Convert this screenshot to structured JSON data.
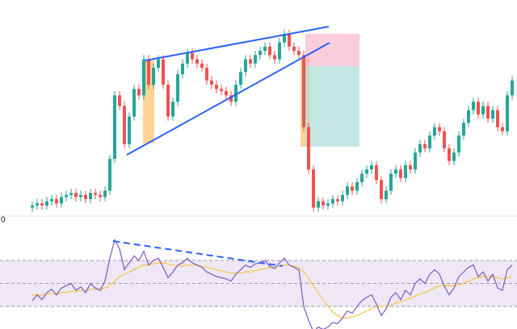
{
  "chart_data": {
    "type": "candlestick",
    "label": "0",
    "ylim": [
      -2,
      100
    ],
    "up_color": "#26a69a",
    "down_color": "#ef5350",
    "open": [
      2,
      3,
      4,
      3,
      5,
      6,
      4,
      7,
      8,
      9,
      7,
      8,
      6,
      9,
      8,
      7,
      10,
      25,
      55,
      50,
      32,
      45,
      58,
      55,
      72,
      60,
      68,
      72,
      60,
      45,
      52,
      65,
      70,
      75,
      72,
      70,
      68,
      62,
      60,
      58,
      57,
      55,
      52,
      60,
      66,
      72,
      70,
      74,
      76,
      78,
      74,
      72,
      80,
      84,
      78,
      76,
      74,
      40,
      20,
      2,
      5,
      3,
      4,
      6,
      5,
      8,
      12,
      10,
      14,
      18,
      20,
      22,
      15,
      6,
      10,
      18,
      20,
      16,
      22,
      20,
      28,
      32,
      30,
      36,
      40,
      38,
      30,
      24,
      28,
      36,
      42,
      48,
      52,
      46,
      50,
      44,
      48,
      40,
      38,
      55
    ],
    "high": [
      5,
      6,
      6,
      7,
      8,
      8,
      9,
      10,
      11,
      11,
      10,
      10,
      11,
      11,
      10,
      12,
      27,
      57,
      57,
      52,
      47,
      60,
      60,
      74,
      74,
      70,
      74,
      74,
      62,
      54,
      67,
      72,
      77,
      77,
      74,
      72,
      70,
      64,
      62,
      60,
      59,
      57,
      62,
      68,
      74,
      74,
      76,
      78,
      80,
      80,
      76,
      82,
      86,
      86,
      80,
      78,
      76,
      42,
      22,
      7,
      7,
      6,
      8,
      8,
      10,
      14,
      14,
      16,
      20,
      22,
      24,
      24,
      17,
      12,
      20,
      22,
      22,
      24,
      24,
      30,
      34,
      34,
      38,
      42,
      42,
      40,
      32,
      30,
      38,
      44,
      50,
      54,
      54,
      52,
      52,
      50,
      50,
      42,
      57,
      64
    ],
    "low": [
      0,
      1,
      1,
      1,
      3,
      2,
      2,
      5,
      6,
      5,
      5,
      4,
      4,
      6,
      5,
      5,
      8,
      23,
      48,
      30,
      30,
      43,
      53,
      53,
      58,
      58,
      66,
      58,
      43,
      43,
      50,
      63,
      68,
      70,
      68,
      66,
      60,
      58,
      56,
      55,
      53,
      50,
      50,
      58,
      64,
      68,
      68,
      72,
      74,
      72,
      70,
      70,
      78,
      76,
      74,
      72,
      38,
      18,
      0,
      0,
      1,
      1,
      2,
      3,
      3,
      6,
      8,
      8,
      12,
      16,
      18,
      13,
      4,
      4,
      8,
      16,
      14,
      14,
      18,
      18,
      26,
      28,
      28,
      34,
      36,
      28,
      22,
      22,
      26,
      34,
      40,
      46,
      44,
      44,
      42,
      42,
      38,
      36,
      36,
      53
    ],
    "close": [
      3,
      4,
      3,
      5,
      6,
      4,
      7,
      8,
      9,
      7,
      8,
      6,
      9,
      8,
      7,
      10,
      25,
      55,
      50,
      32,
      45,
      58,
      55,
      72,
      60,
      68,
      72,
      60,
      45,
      52,
      65,
      70,
      75,
      72,
      70,
      68,
      62,
      60,
      58,
      57,
      55,
      52,
      60,
      66,
      72,
      70,
      74,
      76,
      78,
      74,
      72,
      80,
      84,
      78,
      76,
      74,
      40,
      20,
      2,
      5,
      3,
      4,
      6,
      5,
      8,
      12,
      10,
      14,
      18,
      20,
      22,
      15,
      6,
      10,
      18,
      20,
      16,
      22,
      20,
      28,
      32,
      30,
      36,
      40,
      38,
      30,
      24,
      28,
      36,
      42,
      48,
      52,
      46,
      50,
      44,
      48,
      40,
      38,
      55,
      62
    ],
    "rsi": {
      "type": "line",
      "ylim": [
        0,
        100
      ],
      "bands": [
        70,
        50,
        30
      ],
      "band_color": "#ede7f6",
      "series": [
        {
          "color": "#7e57c2",
          "values": [
            35,
            40,
            36,
            42,
            45,
            40,
            46,
            48,
            50,
            44,
            47,
            42,
            50,
            46,
            44,
            52,
            72,
            88,
            80,
            62,
            68,
            74,
            70,
            78,
            66,
            70,
            72,
            64,
            55,
            60,
            66,
            68,
            72,
            68,
            66,
            64,
            60,
            58,
            56,
            55,
            54,
            52,
            58,
            62,
            66,
            64,
            67,
            68,
            70,
            65,
            63,
            68,
            72,
            66,
            64,
            62,
            30,
            18,
            8,
            12,
            10,
            12,
            16,
            15,
            20,
            26,
            24,
            30,
            35,
            38,
            40,
            32,
            22,
            28,
            38,
            42,
            36,
            44,
            40,
            50,
            54,
            50,
            58,
            62,
            58,
            48,
            40,
            46,
            56,
            60,
            64,
            66,
            56,
            60,
            52,
            58,
            46,
            44,
            62,
            66
          ]
        },
        {
          "color": "#f5c542",
          "values": [
            40,
            40,
            40,
            41,
            41,
            41,
            42,
            42,
            43,
            43,
            44,
            44,
            45,
            45,
            45,
            46,
            48,
            52,
            56,
            58,
            60,
            62,
            64,
            66,
            66,
            67,
            68,
            68,
            67,
            66,
            65,
            65,
            66,
            66,
            66,
            65,
            64,
            63,
            62,
            61,
            60,
            59,
            59,
            59,
            60,
            60,
            61,
            62,
            63,
            64,
            64,
            65,
            66,
            66,
            65,
            64,
            60,
            55,
            48,
            42,
            36,
            30,
            25,
            22,
            20,
            20,
            21,
            22,
            24,
            26,
            28,
            30,
            30,
            30,
            31,
            33,
            34,
            36,
            37,
            39,
            41,
            42,
            44,
            46,
            48,
            48,
            48,
            48,
            49,
            50,
            52,
            54,
            55,
            56,
            56,
            56,
            55,
            54,
            55,
            56
          ]
        }
      ]
    }
  }
}
